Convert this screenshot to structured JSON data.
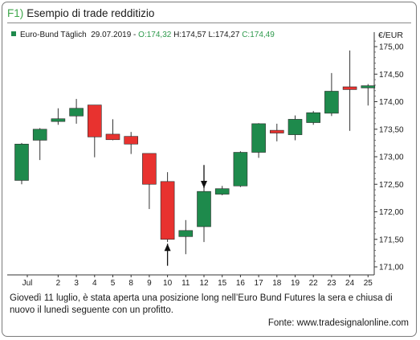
{
  "header": {
    "figure_number": "F1)",
    "title": "Esempio di trade redditizio"
  },
  "legend": {
    "instrument": "Euro-Bund Täglich",
    "date": "29.07.2019",
    "open_label": "O:174,32",
    "high_label": "H:174,57",
    "low_label": "L:174,27",
    "close_label": "C:174,49",
    "marker_color": "#1e8a4c"
  },
  "axis": {
    "currency": "€/EUR"
  },
  "caption": "Giovedì 11 luglio, è stata aperta una posizione long nell’Euro Bund Futures la sera e chiusa di nuovo il lunedì seguente con un profitto.",
  "source": "Fonte: www.tradesignalonline.com",
  "chart_data": {
    "type": "candlestick",
    "colors": {
      "up": "#1e8a4c",
      "down": "#e8322f",
      "wick": "#333333"
    },
    "ylim": [
      170.9,
      175.2
    ],
    "yticks": [
      "171,00",
      "171,50",
      "172,00",
      "172,50",
      "173,00",
      "173,50",
      "174,00",
      "174,50",
      "175,00"
    ],
    "ytick_values": [
      171.0,
      171.5,
      172.0,
      172.5,
      173.0,
      173.5,
      174.0,
      174.5,
      175.0
    ],
    "x_labels": [
      "Jul",
      "2",
      "3",
      "4",
      "5",
      "8",
      "9",
      "10",
      "11",
      "12",
      "15",
      "16",
      "17",
      "18",
      "19",
      "22",
      "23",
      "24",
      "25"
    ],
    "x_label_index": [
      0.7,
      2,
      3,
      4,
      5,
      6,
      7,
      8,
      9,
      10,
      11,
      12,
      13,
      14,
      15,
      16,
      17,
      18,
      19
    ],
    "candles": [
      {
        "x": 0,
        "open": 172.57,
        "high": 173.25,
        "low": 172.5,
        "close": 173.23
      },
      {
        "x": 1,
        "open": 173.3,
        "high": 173.52,
        "low": 172.94,
        "close": 173.5
      },
      {
        "x": 2,
        "open": 173.64,
        "high": 173.88,
        "low": 173.58,
        "close": 173.69
      },
      {
        "x": 3,
        "open": 173.74,
        "high": 174.05,
        "low": 173.6,
        "close": 173.88
      },
      {
        "x": 4,
        "open": 173.94,
        "high": 173.94,
        "low": 172.99,
        "close": 173.36
      },
      {
        "x": 5,
        "open": 173.41,
        "high": 173.68,
        "low": 173.3,
        "close": 173.31
      },
      {
        "x": 6,
        "open": 173.37,
        "high": 173.45,
        "low": 173.05,
        "close": 173.23
      },
      {
        "x": 7,
        "open": 173.06,
        "high": 173.06,
        "low": 172.05,
        "close": 172.5
      },
      {
        "x": 8,
        "open": 172.55,
        "high": 172.72,
        "low": 171.45,
        "close": 171.5
      },
      {
        "x": 9,
        "open": 171.55,
        "high": 171.85,
        "low": 171.23,
        "close": 171.66
      },
      {
        "x": 10,
        "open": 171.73,
        "high": 172.5,
        "low": 171.45,
        "close": 172.37
      },
      {
        "x": 11,
        "open": 172.32,
        "high": 172.47,
        "low": 172.3,
        "close": 172.42
      },
      {
        "x": 12,
        "open": 172.47,
        "high": 173.1,
        "low": 172.45,
        "close": 173.08
      },
      {
        "x": 13,
        "open": 173.08,
        "high": 173.61,
        "low": 172.98,
        "close": 173.6
      },
      {
        "x": 14,
        "open": 173.48,
        "high": 173.6,
        "low": 173.28,
        "close": 173.43
      },
      {
        "x": 15,
        "open": 173.4,
        "high": 173.75,
        "low": 173.3,
        "close": 173.68
      },
      {
        "x": 16,
        "open": 173.62,
        "high": 173.83,
        "low": 173.58,
        "close": 173.8
      },
      {
        "x": 17,
        "open": 173.79,
        "high": 174.52,
        "low": 173.74,
        "close": 174.19
      },
      {
        "x": 18,
        "open": 174.27,
        "high": 174.93,
        "low": 173.47,
        "close": 174.22
      },
      {
        "x": 19,
        "open": 174.25,
        "high": 174.32,
        "low": 173.93,
        "close": 174.29
      }
    ],
    "entry_marker": {
      "type": "up-arrow",
      "x": 8,
      "from": 171.02,
      "to": 171.42
    },
    "exit_marker": {
      "type": "down-arrow",
      "x": 10,
      "from": 172.85,
      "to": 172.43
    }
  }
}
